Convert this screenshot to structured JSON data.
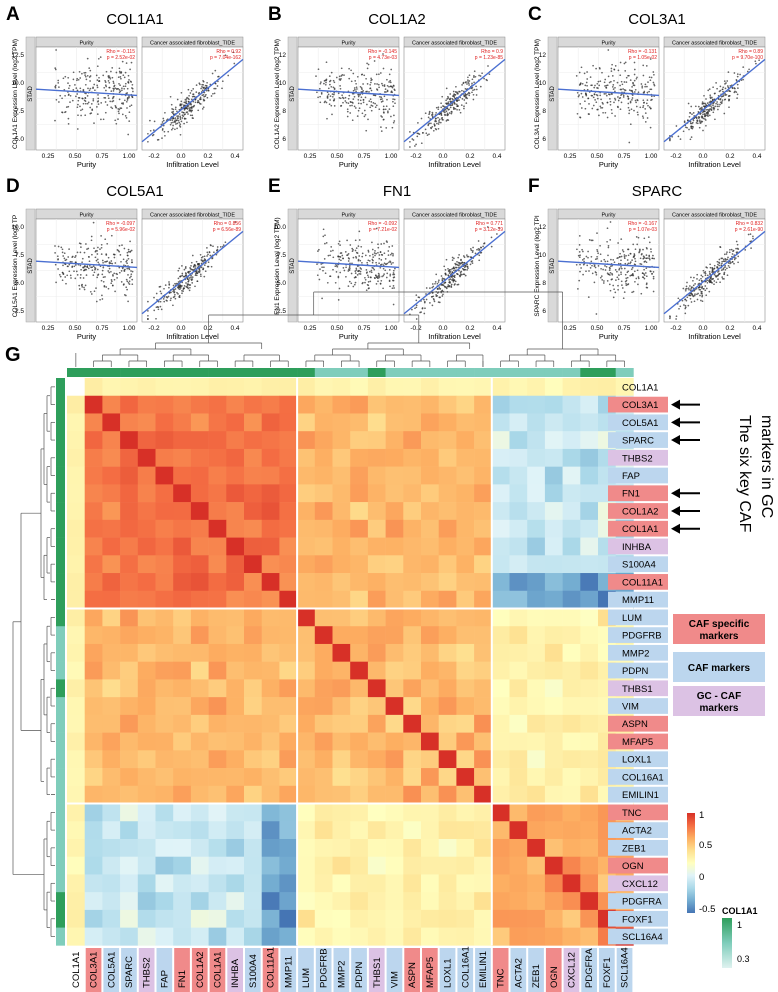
{
  "panels_top": [
    {
      "letter": "A",
      "gene": "COL1A1",
      "ylabel": "COL1A1 Expression Level (log2 TPM)",
      "yticks": [
        "5.0",
        "7.5",
        "10.0",
        "12.5"
      ],
      "left": {
        "title": "Purity",
        "xlabel": "Purity",
        "xticks": [
          "0.25",
          "0.50",
          "0.75",
          "1.00"
        ],
        "rho": "Rho = -0.115",
        "p": "p = 2.52e-02"
      },
      "right": {
        "title": "Cancer associated fibroblast_TIDE",
        "xlabel": "Infiltration Level",
        "xticks": [
          "-0.2",
          "0.0",
          "0.2",
          "0.4"
        ],
        "rho": "Rho = 0.92",
        "p": "p = 7.04e-162"
      }
    },
    {
      "letter": "B",
      "gene": "COL1A2",
      "ylabel": "COL1A2 Expression Level (log2 TPM)",
      "yticks": [
        "6",
        "8",
        "10",
        "12"
      ],
      "left": {
        "title": "Purity",
        "xlabel": "Purity",
        "xticks": [
          "0.25",
          "0.50",
          "0.75",
          "1.00"
        ],
        "rho": "Rho = -0.145",
        "p": "p = 4.73e-03"
      },
      "right": {
        "title": "Cancer associated fibroblast_TIDE",
        "xlabel": "Infiltration Level",
        "xticks": [
          "-0.2",
          "0.0",
          "0.2",
          "0.4"
        ],
        "rho": "Rho = 0.9",
        "p": "p = 1.23e-85"
      }
    },
    {
      "letter": "C",
      "gene": "COL3A1",
      "ylabel": "COL3A1 Expression Level (log2 TPM)",
      "yticks": [
        "6",
        "8",
        "10",
        "12"
      ],
      "left": {
        "title": "Purity",
        "xlabel": "Purity",
        "xticks": [
          "0.25",
          "0.50",
          "0.75",
          "1.00"
        ],
        "rho": "Rho = -0.131",
        "p": "p = 1.05e-02"
      },
      "right": {
        "title": "Cancer associated fibroblast_TIDE",
        "xlabel": "Infiltration Level",
        "xticks": [
          "-0.2",
          "0.0",
          "0.2",
          "0.4"
        ],
        "rho": "Rho = 0.89",
        "p": "p = 9.70e-100"
      }
    },
    {
      "letter": "D",
      "gene": "COL5A1",
      "ylabel": "COL5A1 Expression Level (log2 TP",
      "yticks": [
        "2.5",
        "5.0",
        "7.5",
        "10.0"
      ],
      "left": {
        "title": "Purity",
        "xlabel": "Purity",
        "xticks": [
          "0.25",
          "0.50",
          "0.75",
          "1.00"
        ],
        "rho": "Rho = -0.097",
        "p": "p = 5.96e-02"
      },
      "right": {
        "title": "Cancer associated fibroblast_TIDE",
        "xlabel": "Infiltration Level",
        "xticks": [
          "-0.2",
          "0.0",
          "0.2",
          "0.4"
        ],
        "rho": "Rho = 0.856",
        "p": "p = 6.56e-89"
      }
    },
    {
      "letter": "E",
      "gene": "FN1",
      "ylabel": "FN1 Expression Level (log2 TPM)",
      "yticks": [
        "2.5",
        "5.0",
        "7.5",
        "10.0"
      ],
      "left": {
        "title": "Purity",
        "xlabel": "Purity",
        "xticks": [
          "0.25",
          "0.50",
          "0.75",
          "1.00"
        ],
        "rho": "Rho = -0.092",
        "p": "p = 7.21e-02"
      },
      "right": {
        "title": "Cancer associated fibroblast_TIDE",
        "xlabel": "Infiltration Level",
        "xticks": [
          "-0.2",
          "0.0",
          "0.2",
          "0.4"
        ],
        "rho": "Rho = 0.771",
        "p": "p = 3.12e-39"
      }
    },
    {
      "letter": "F",
      "gene": "SPARC",
      "ylabel": "SPARC Expression Level (log2 TPI",
      "yticks": [
        "6",
        "8",
        "10",
        "12"
      ],
      "left": {
        "title": "Purity",
        "xlabel": "Purity",
        "xticks": [
          "0.25",
          "0.50",
          "0.75",
          "1.00"
        ],
        "rho": "Rho = -0.167",
        "p": "p = 1.07e-03"
      },
      "right": {
        "title": "Cancer associated fibroblast_TIDE",
        "xlabel": "Infiltration Level",
        "xticks": [
          "-0.2",
          "0.0",
          "0.2",
          "0.4"
        ],
        "rho": "Rho = 0.832",
        "p": "p = 2.61e-90"
      }
    }
  ],
  "strip_label": "STAD",
  "panel_g_letter": "G",
  "genes": [
    "COL1A1",
    "COL3A1",
    "COL5A1",
    "SPARC",
    "THBS2",
    "FAP",
    "FN1",
    "COL1A2",
    "COL1A1",
    "INHBA",
    "S100A4",
    "COL11A1",
    "MMP11",
    "LUM",
    "PDGFRB",
    "MMP2",
    "PDPN",
    "THBS1",
    "VIM",
    "ASPN",
    "MFAP5",
    "LOXL1",
    "COL16A1",
    "EMILIN1",
    "TNC",
    "ACTA2",
    "ZEB1",
    "OGN",
    "CXCL12",
    "PDGFRA",
    "FOXF1",
    "SCL16A4"
  ],
  "gene_categories": [
    "plain",
    "caf_specific",
    "caf",
    "caf",
    "gc_caf",
    "caf",
    "caf_specific",
    "caf_specific",
    "caf_specific",
    "gc_caf",
    "caf",
    "caf_specific",
    "caf",
    "caf",
    "caf",
    "caf",
    "caf",
    "gc_caf",
    "caf",
    "caf_specific",
    "caf_specific",
    "caf",
    "caf",
    "caf",
    "caf_specific",
    "caf",
    "caf",
    "caf_specific",
    "gc_caf",
    "caf",
    "caf",
    "caf"
  ],
  "annotation_text": "The six key CAF markers in GC",
  "annotation_lines": [
    "The six key CAF",
    "markers in GC"
  ],
  "legend_boxes": [
    {
      "label_lines": [
        "CAF specific",
        "markers"
      ],
      "category": "caf_specific"
    },
    {
      "label_lines": [
        "CAF markers"
      ],
      "category": "caf"
    },
    {
      "label_lines": [
        "GC - CAF",
        "markers"
      ],
      "category": "gc_caf"
    }
  ],
  "colorbar": {
    "ticks": [
      "1",
      "0.5",
      "0",
      "-0.5"
    ],
    "colors": [
      "#d73027",
      "#f46d43",
      "#fdae61",
      "#fee090",
      "#ffffbf",
      "#e0f3f8",
      "#abd9e9",
      "#74add1",
      "#4575b4"
    ]
  },
  "col1a1_legend": {
    "title": "COL1A1",
    "ticks": [
      "1",
      "0.3"
    ],
    "colors": [
      "#2e9e5b",
      "#7fcdbb",
      "#dff2f0"
    ]
  },
  "colors": {
    "caf_specific": "#f08a8a",
    "caf": "#bcd6ee",
    "gc_caf": "#dcc2e4",
    "plain": "#ffffff",
    "arrow": "#000000"
  }
}
